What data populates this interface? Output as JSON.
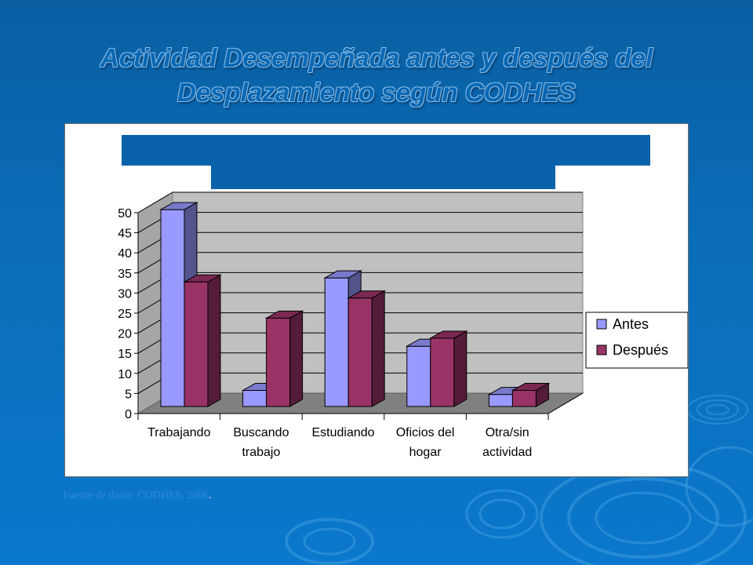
{
  "slide": {
    "title_line1": "Actividad Desempeñada antes y después del",
    "title_line2": "Desplazamiento según CODHES",
    "source_text": "Fuente de datos: CODHES, 2006",
    "source_suffix": "."
  },
  "colors": {
    "background": "#0a6cb7",
    "banner": "#0a62aa",
    "antes": "#9999ff",
    "despues": "#993366",
    "plot_wall": "#c0c0c0",
    "plot_floor": "#808080"
  },
  "chart_data": {
    "type": "bar",
    "title": "",
    "categories": [
      [
        "Trabajando"
      ],
      [
        "Buscando",
        "trabajo"
      ],
      [
        "Estudiando"
      ],
      [
        "Oficios del",
        "hogar"
      ],
      [
        "Otra/sin",
        "actividad"
      ]
    ],
    "series": [
      {
        "name": "Antes",
        "values": [
          49,
          4,
          32,
          15,
          3
        ]
      },
      {
        "name": "Después",
        "values": [
          31,
          22,
          27,
          17,
          4
        ]
      }
    ],
    "ylim": [
      0,
      50
    ],
    "yticks": [
      0,
      5,
      10,
      15,
      20,
      25,
      30,
      35,
      40,
      45,
      50
    ],
    "grid": true,
    "legend_position": "right",
    "style": "3d-clustered"
  }
}
